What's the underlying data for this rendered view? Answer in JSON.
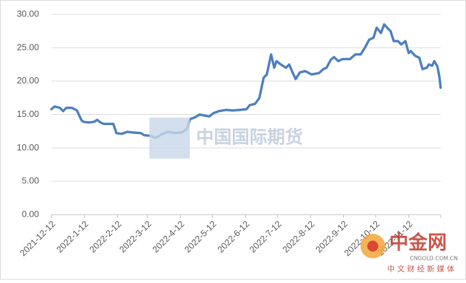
{
  "chart_data": {
    "type": "line",
    "x": [
      "2021-12-12",
      "2021-12-15",
      "2021-12-20",
      "2021-12-23",
      "2021-12-26",
      "2021-12-31",
      "2022-1-5",
      "2022-1-9",
      "2022-1-11",
      "2022-1-16",
      "2022-1-21",
      "2022-1-24",
      "2022-1-27",
      "2022-1-30",
      "2022-2-8",
      "2022-2-11",
      "2022-2-16",
      "2022-2-21",
      "2022-2-27",
      "2022-3-6",
      "2022-3-9",
      "2022-3-15",
      "2022-3-20",
      "2022-3-25",
      "2022-3-31",
      "2022-4-7",
      "2022-4-13",
      "2022-4-18",
      "2022-4-21",
      "2022-4-26",
      "2022-4-30",
      "2022-5-6",
      "2022-5-9",
      "2022-5-13",
      "2022-5-18",
      "2022-5-25",
      "2022-5-31",
      "2022-6-7",
      "2022-6-13",
      "2022-6-16",
      "2022-6-21",
      "2022-6-25",
      "2022-6-29",
      "2022-7-2",
      "2022-7-4",
      "2022-7-6",
      "2022-7-9",
      "2022-7-11",
      "2022-7-15",
      "2022-7-20",
      "2022-7-23",
      "2022-7-27",
      "2022-7-29",
      "2022-8-2",
      "2022-8-7",
      "2022-8-13",
      "2022-8-20",
      "2022-8-24",
      "2022-8-27",
      "2022-8-31",
      "2022-9-3",
      "2022-9-7",
      "2022-9-11",
      "2022-9-18",
      "2022-9-23",
      "2022-9-28",
      "2022-10-2",
      "2022-10-6",
      "2022-10-10",
      "2022-10-13",
      "2022-10-17",
      "2022-10-20",
      "2022-10-24",
      "2022-10-26",
      "2022-10-29",
      "2022-11-2",
      "2022-11-5",
      "2022-11-9",
      "2022-11-12",
      "2022-11-14",
      "2022-11-18",
      "2022-11-22",
      "2022-11-25",
      "2022-11-29",
      "2022-12-1",
      "2022-12-4",
      "2022-12-6",
      "2022-12-9",
      "2022-12-11",
      "2022-12-12"
    ],
    "series": [
      {
        "color": "#4e7fbf",
        "values": [
          15.8,
          16.2,
          16.0,
          15.5,
          16.0,
          16.0,
          15.6,
          14.2,
          13.9,
          13.8,
          13.9,
          14.2,
          13.8,
          13.6,
          13.6,
          12.2,
          12.1,
          12.4,
          12.3,
          12.2,
          11.9,
          11.8,
          11.5,
          12.0,
          12.4,
          12.2,
          12.3,
          12.8,
          14.3,
          14.6,
          15.0,
          14.8,
          14.7,
          15.2,
          15.5,
          15.7,
          15.6,
          15.7,
          15.8,
          16.4,
          16.6,
          17.5,
          20.5,
          21.0,
          22.5,
          24.0,
          22.0,
          23.0,
          22.5,
          22.0,
          22.5,
          21.0,
          20.3,
          21.3,
          21.5,
          21.0,
          21.2,
          21.8,
          22.0,
          23.2,
          23.6,
          23.0,
          23.3,
          23.3,
          24.0,
          24.0,
          25.0,
          26.2,
          26.5,
          28.0,
          27.2,
          28.5,
          27.8,
          27.5,
          26.0,
          26.0,
          25.5,
          26.0,
          24.2,
          24.5,
          23.8,
          23.5,
          21.8,
          22.0,
          22.5,
          22.3,
          23.0,
          22.2,
          20.5,
          19.0
        ]
      }
    ],
    "xlim": [
      "2021-12-12",
      "2022-12-12"
    ],
    "xticks": [
      "2021-12-12",
      "2022-1-12",
      "2022-2-12",
      "2022-3-12",
      "2022-4-12",
      "2022-5-12",
      "2022-6-12",
      "2022-7-12",
      "2022-8-12",
      "2022-9-12",
      "2022-10-12",
      "2022-11-12"
    ],
    "ylim": [
      0,
      30
    ],
    "yticks": [
      {
        "value": 0,
        "label": "0.00"
      },
      {
        "value": 5,
        "label": "5.00"
      },
      {
        "value": 10,
        "label": "10.00"
      },
      {
        "value": 15,
        "label": "15.00"
      },
      {
        "value": 20,
        "label": "20.00"
      },
      {
        "value": 25,
        "label": "25.00"
      },
      {
        "value": 30,
        "label": "30.00"
      }
    ],
    "grid": true,
    "watermarks": [
      "中国国际期货",
      "中金网",
      "CNGOLD.COM.CN",
      "中 文 财 经 新 媒 体"
    ]
  }
}
